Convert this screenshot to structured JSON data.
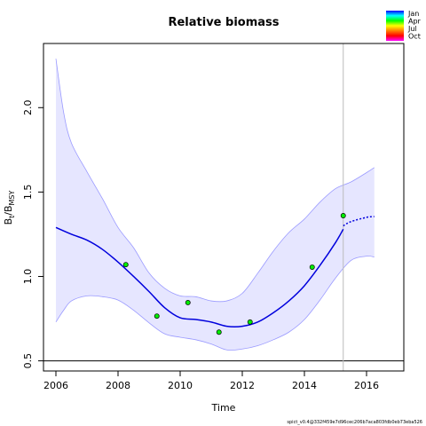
{
  "chart_data": {
    "type": "line",
    "title": "Relative biomass",
    "xlabel": "Time",
    "ylabel_main": "B",
    "ylabel_sub1": "t",
    "ylabel_mid": "/B",
    "ylabel_sub2": "MSY",
    "xlim": [
      2005.6,
      2017.2
    ],
    "ylim": [
      0.44,
      2.38
    ],
    "x_ticks": [
      2006,
      2008,
      2010,
      2012,
      2014,
      2016
    ],
    "y_ticks": [
      0.5,
      1.0,
      1.5,
      2.0
    ],
    "x_tick_labels": [
      "2006",
      "2008",
      "2010",
      "2012",
      "2014",
      "2016"
    ],
    "y_tick_labels": [
      "0.5",
      "1.0",
      "1.5",
      "2.0"
    ],
    "reference_line_y": 0.5,
    "vertical_line_x": 2015.25,
    "series": [
      {
        "role": "estimate",
        "x": [
          2006.0,
          2006.5,
          2007.0,
          2007.5,
          2008.0,
          2008.5,
          2009.0,
          2009.5,
          2010.0,
          2010.5,
          2011.0,
          2011.5,
          2012.0,
          2012.5,
          2013.0,
          2013.5,
          2014.0,
          2014.5,
          2015.0,
          2015.25
        ],
        "y": [
          1.29,
          1.25,
          1.215,
          1.16,
          1.085,
          1.0,
          0.91,
          0.815,
          0.755,
          0.745,
          0.73,
          0.705,
          0.705,
          0.73,
          0.785,
          0.855,
          0.945,
          1.065,
          1.2,
          1.28
        ]
      },
      {
        "role": "forecast",
        "x": [
          2015.25,
          2015.5,
          2016.0,
          2016.25
        ],
        "y": [
          1.3,
          1.325,
          1.35,
          1.355
        ]
      },
      {
        "role": "upper-ci",
        "x": [
          2006.0,
          2006.25,
          2006.5,
          2007.0,
          2007.5,
          2008.0,
          2008.5,
          2009.0,
          2009.5,
          2010.0,
          2010.5,
          2011.0,
          2011.5,
          2012.0,
          2012.5,
          2013.0,
          2013.5,
          2014.0,
          2014.5,
          2015.0,
          2015.5,
          2016.0,
          2016.25
        ],
        "y": [
          2.29,
          1.97,
          1.79,
          1.62,
          1.46,
          1.29,
          1.17,
          1.02,
          0.93,
          0.885,
          0.88,
          0.855,
          0.855,
          0.9,
          1.02,
          1.15,
          1.26,
          1.34,
          1.44,
          1.52,
          1.56,
          1.615,
          1.645
        ]
      },
      {
        "role": "lower-ci",
        "x": [
          2006.0,
          2006.25,
          2006.5,
          2007.0,
          2007.5,
          2008.0,
          2008.5,
          2009.0,
          2009.5,
          2010.0,
          2010.5,
          2011.0,
          2011.5,
          2012.0,
          2012.5,
          2013.0,
          2013.5,
          2014.0,
          2014.5,
          2015.0,
          2015.5,
          2016.0,
          2016.25
        ],
        "y": [
          0.73,
          0.8,
          0.855,
          0.885,
          0.88,
          0.86,
          0.8,
          0.725,
          0.66,
          0.64,
          0.625,
          0.6,
          0.565,
          0.57,
          0.59,
          0.625,
          0.67,
          0.745,
          0.86,
          0.99,
          1.095,
          1.12,
          1.115
        ]
      }
    ],
    "observations": {
      "x": [
        2008.25,
        2009.25,
        2010.25,
        2011.25,
        2012.25,
        2014.25,
        2015.25
      ],
      "y": [
        1.07,
        0.765,
        0.845,
        0.67,
        0.73,
        1.055,
        1.36
      ]
    },
    "legend": {
      "placement": "top-right",
      "labels": [
        "Jan",
        "Apr",
        "Jul",
        "Oct"
      ],
      "gradient_colors": [
        "#0000ff",
        "#00ffff",
        "#00ff00",
        "#ffff00",
        "#ff8000",
        "#ff0000",
        "#ff00ff"
      ]
    },
    "colors": {
      "estimate": "#0000dd",
      "forecast": "#0000dd",
      "ci_fill": "#e6e6ff",
      "ci_line": "#9a9aff",
      "point_fill": "#00ee00",
      "reference_line": "#000000",
      "vertical_line": "#bbbbbb"
    },
    "footer": "spict_v0.4@332f459e7d96cec206b7aca803fdb0eb73eba526"
  }
}
